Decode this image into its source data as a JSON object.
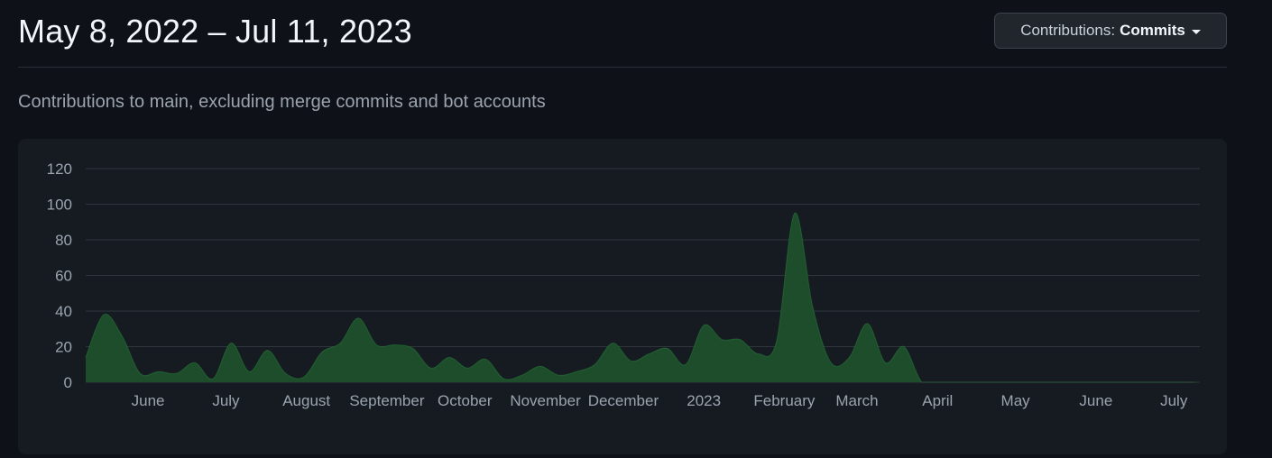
{
  "header": {
    "range_title": "May 8, 2022 – Jul 11, 2023",
    "dropdown_prefix": "Contributions:",
    "dropdown_value": "Commits"
  },
  "subtitle": "Contributions to main, excluding merge commits and bot accounts",
  "colors": {
    "area_fill": "#1e4d2b",
    "area_stroke": "#2ea043",
    "grid": "#2f353d"
  },
  "chart_data": {
    "type": "area",
    "title": "",
    "xlabel": "",
    "ylabel": "",
    "ylim": [
      0,
      120
    ],
    "yticks": [
      0,
      20,
      40,
      60,
      80,
      100,
      120
    ],
    "grid": true,
    "x_ticks": [
      {
        "label": "June",
        "date": "2022-06-01"
      },
      {
        "label": "July",
        "date": "2022-07-01"
      },
      {
        "label": "August",
        "date": "2022-08-01"
      },
      {
        "label": "September",
        "date": "2022-09-01"
      },
      {
        "label": "October",
        "date": "2022-10-01"
      },
      {
        "label": "November",
        "date": "2022-11-01"
      },
      {
        "label": "December",
        "date": "2022-12-01"
      },
      {
        "label": "2023",
        "date": "2023-01-01"
      },
      {
        "label": "February",
        "date": "2023-02-01"
      },
      {
        "label": "March",
        "date": "2023-03-01"
      },
      {
        "label": "April",
        "date": "2023-04-01"
      },
      {
        "label": "May",
        "date": "2023-05-01"
      },
      {
        "label": "June",
        "date": "2023-06-01"
      },
      {
        "label": "July",
        "date": "2023-07-01"
      }
    ],
    "series": [
      {
        "x": [
          "2022-05-08",
          "2022-05-15",
          "2022-05-22",
          "2022-05-29",
          "2022-06-05",
          "2022-06-12",
          "2022-06-19",
          "2022-06-26",
          "2022-07-03",
          "2022-07-10",
          "2022-07-17",
          "2022-07-24",
          "2022-07-31",
          "2022-08-07",
          "2022-08-14",
          "2022-08-21",
          "2022-08-28",
          "2022-09-04",
          "2022-09-11",
          "2022-09-18",
          "2022-09-25",
          "2022-10-02",
          "2022-10-09",
          "2022-10-16",
          "2022-10-23",
          "2022-10-30",
          "2022-11-06",
          "2022-11-13",
          "2022-11-20",
          "2022-11-27",
          "2022-12-04",
          "2022-12-11",
          "2022-12-18",
          "2022-12-25",
          "2023-01-01",
          "2023-01-08",
          "2023-01-15",
          "2023-01-22",
          "2023-01-29",
          "2023-02-05",
          "2023-02-12",
          "2023-02-19",
          "2023-02-26",
          "2023-03-05",
          "2023-03-12",
          "2023-03-19",
          "2023-03-26",
          "2023-04-02",
          "2023-04-09",
          "2023-04-16",
          "2023-04-23",
          "2023-04-30",
          "2023-05-07",
          "2023-05-14",
          "2023-05-21",
          "2023-05-28",
          "2023-06-04",
          "2023-06-11",
          "2023-06-18",
          "2023-06-25",
          "2023-07-02",
          "2023-07-09"
        ],
        "values": [
          14,
          38,
          26,
          5,
          6,
          5,
          11,
          2,
          22,
          6,
          18,
          5,
          3,
          17,
          22,
          36,
          21,
          21,
          19,
          8,
          14,
          8,
          13,
          2,
          4,
          9,
          4,
          6,
          10,
          22,
          12,
          16,
          19,
          10,
          32,
          24,
          24,
          16,
          23,
          95,
          42,
          11,
          14,
          33,
          11,
          20,
          0,
          0,
          0,
          0,
          0,
          0,
          0,
          0,
          0,
          0,
          0,
          0,
          0,
          0,
          0,
          0
        ]
      }
    ]
  }
}
